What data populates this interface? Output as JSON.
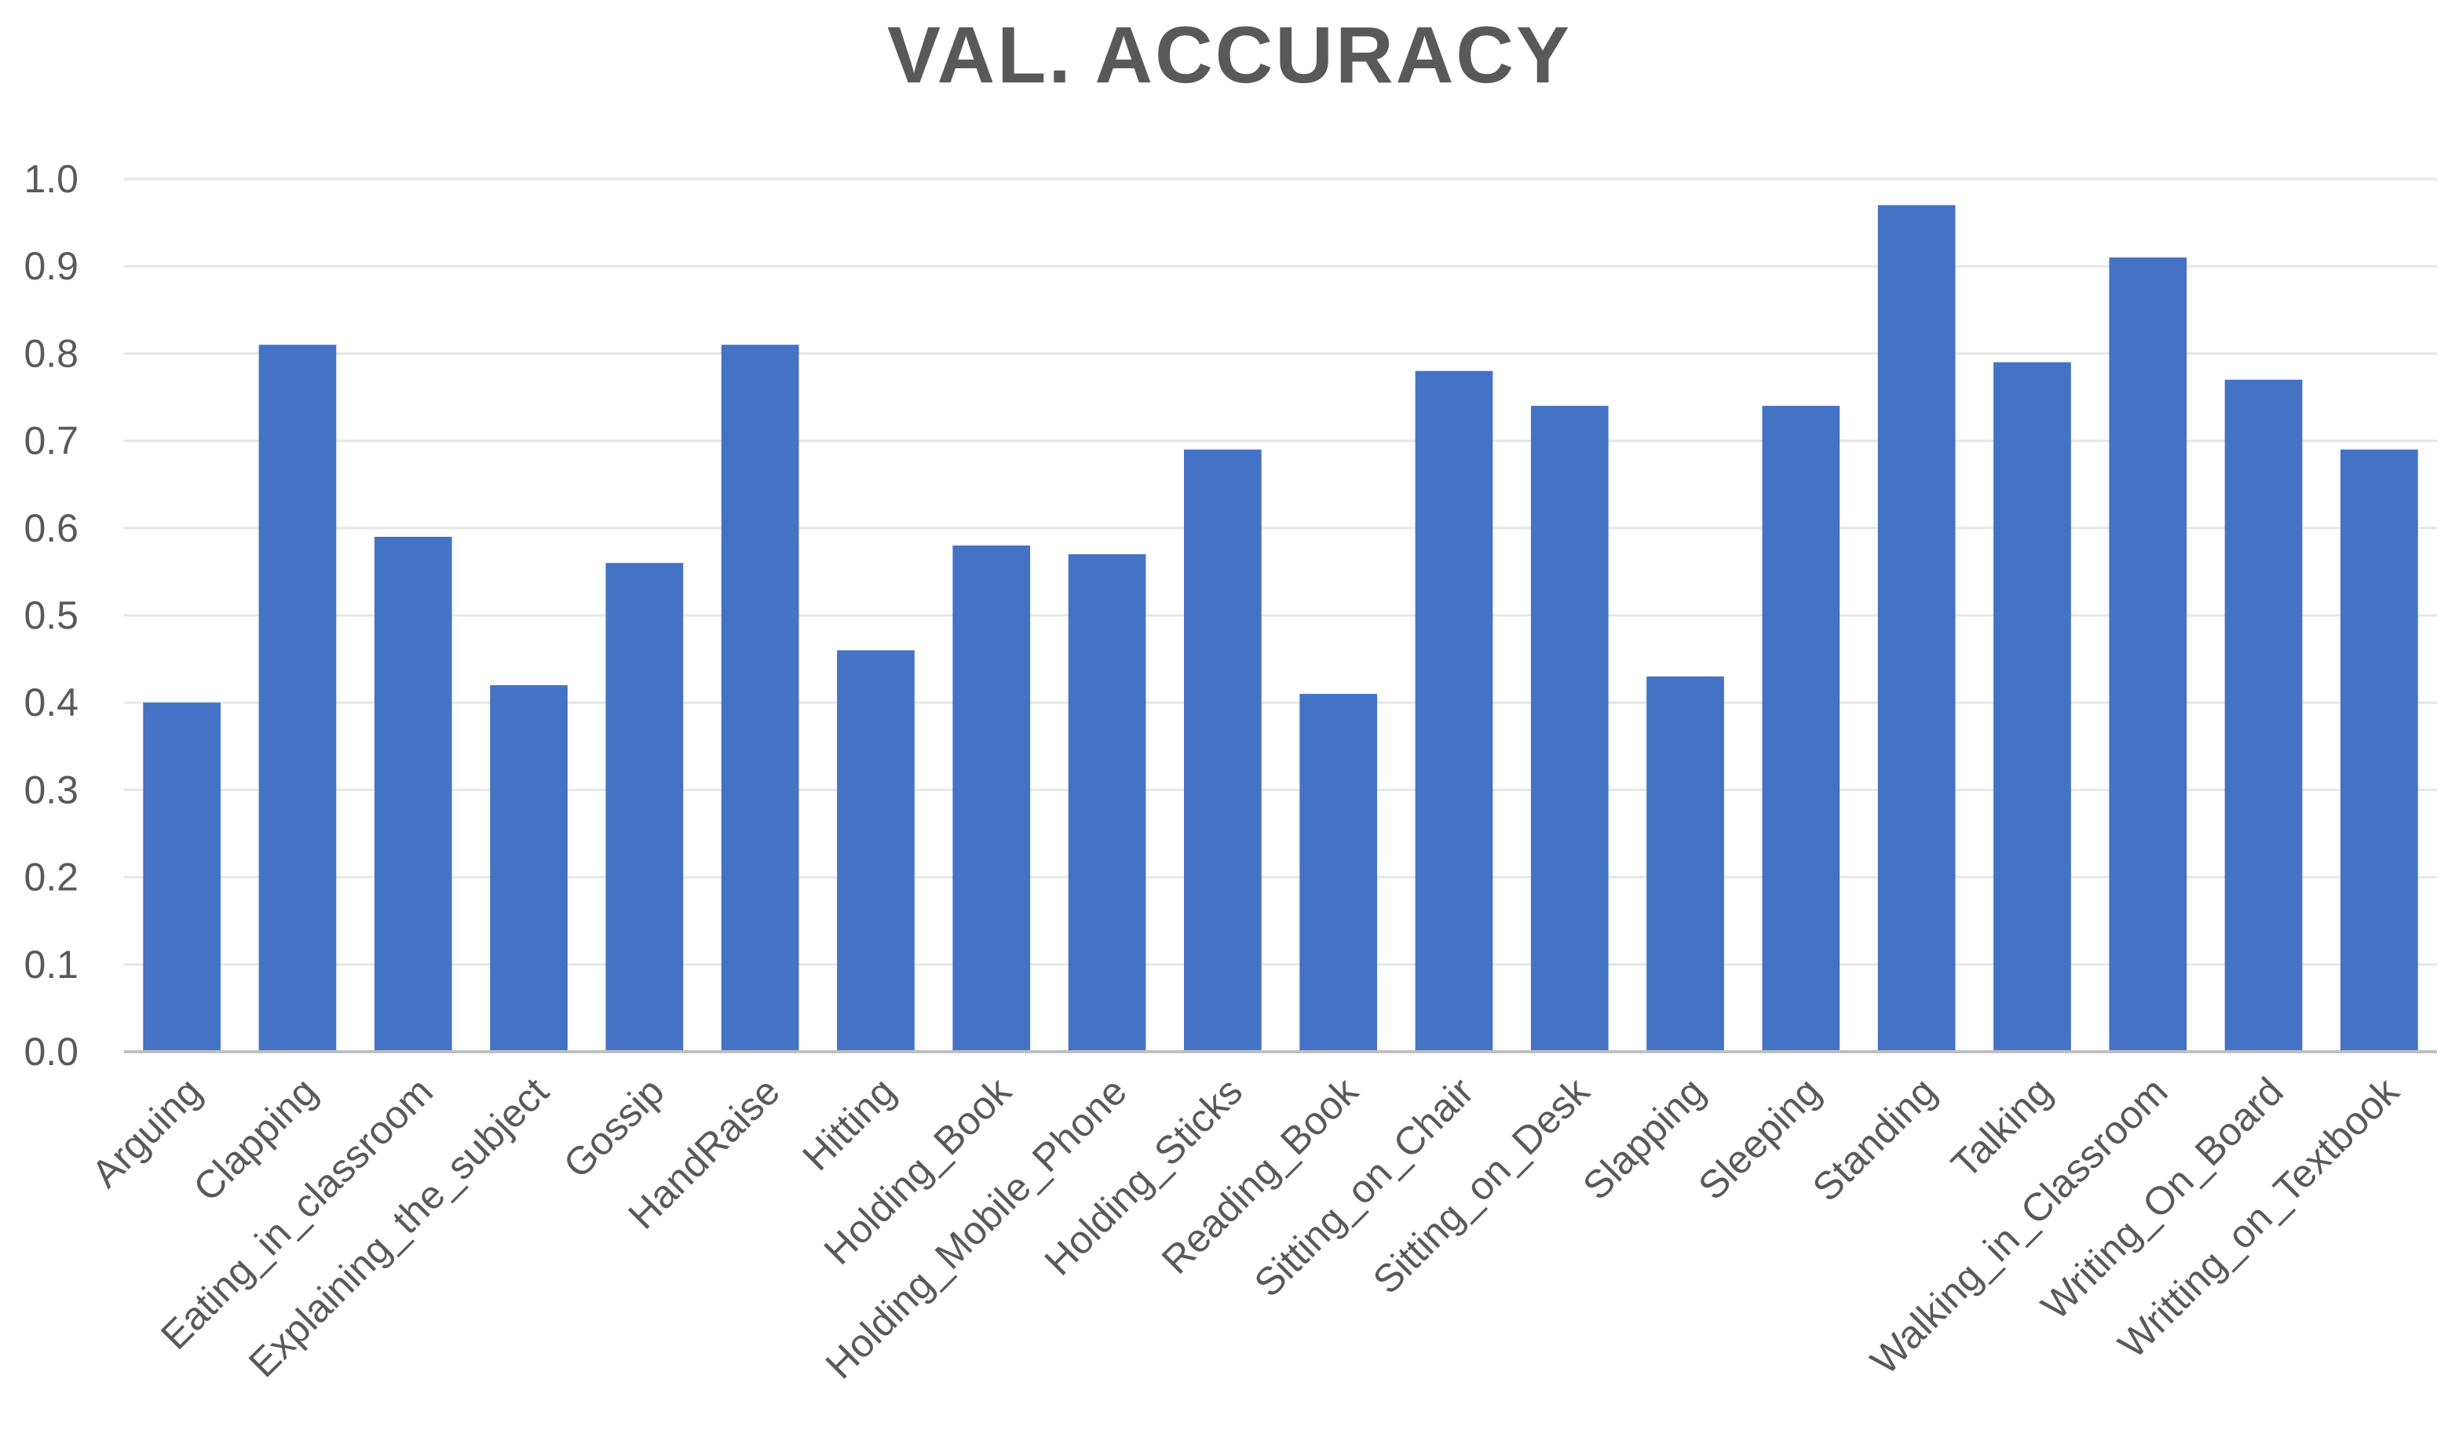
{
  "chart_data": {
    "type": "bar",
    "title": "VAL. ACCURACY",
    "xlabel": "",
    "ylabel": "",
    "ylim": [
      0,
      1.0
    ],
    "yticks": [
      "0.0",
      "0.1",
      "0.2",
      "0.3",
      "0.4",
      "0.5",
      "0.6",
      "0.7",
      "0.8",
      "0.9",
      "1.0"
    ],
    "grid": true,
    "legend": "none",
    "bar_color": "#4472C4",
    "categories": [
      "Arguing",
      "Clapping",
      "Eating_in_classroom",
      "Explaining_the_subject",
      "Gossip",
      "HandRaise",
      "Hitting",
      "Holding_Book",
      "Holding_Mobile_Phone",
      "Holding_Sticks",
      "Reading_Book",
      "Sitting_on_Chair",
      "Sitting_on_Desk",
      "Slapping",
      "Sleeping",
      "Standing",
      "Talking",
      "Walking_in_Classroom",
      "Writing_On_Board",
      "Writting_on_Textbook"
    ],
    "values": [
      0.4,
      0.81,
      0.59,
      0.42,
      0.56,
      0.81,
      0.46,
      0.58,
      0.57,
      0.69,
      0.41,
      0.78,
      0.74,
      0.43,
      0.74,
      0.97,
      0.79,
      0.91,
      0.77,
      0.69
    ]
  }
}
